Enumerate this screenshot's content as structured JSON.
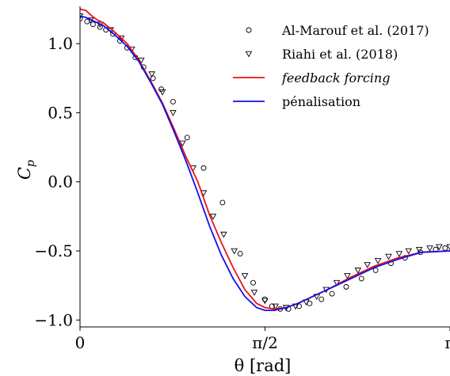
{
  "chart_data": {
    "type": "line",
    "xlabel": "θ [rad]",
    "ylabel": "C_p",
    "xlim": [
      0,
      3.1416
    ],
    "ylim": [
      -1.05,
      1.27
    ],
    "x_ticks": [
      {
        "value": 0,
        "label": "0"
      },
      {
        "value": 1.5708,
        "label": "π/2"
      },
      {
        "value": 3.1416,
        "label": "π"
      }
    ],
    "y_ticks": [
      {
        "value": 1.0,
        "label": "1.0"
      },
      {
        "value": 0.5,
        "label": "0.5"
      },
      {
        "value": 0.0,
        "label": "0.0"
      },
      {
        "value": -0.5,
        "label": "−0.5"
      },
      {
        "value": -1.0,
        "label": "−1.0"
      }
    ],
    "legend_position": "top-right",
    "series": [
      {
        "name": "Al-Marouf et al. (2017)",
        "kind": "marker-circle",
        "color": "#000000",
        "x": [
          0.0,
          0.06,
          0.11,
          0.17,
          0.22,
          0.28,
          0.34,
          0.4,
          0.47,
          0.54,
          0.62,
          0.69,
          0.79,
          0.91,
          1.05,
          1.21,
          1.36,
          1.47,
          1.57,
          1.63,
          1.7,
          1.77,
          1.86,
          1.95,
          2.05,
          2.14,
          2.26,
          2.39,
          2.51,
          2.64,
          2.76,
          2.89,
          3.02,
          3.1
        ],
        "y": [
          1.18,
          1.16,
          1.14,
          1.12,
          1.1,
          1.07,
          1.02,
          0.97,
          0.9,
          0.83,
          0.75,
          0.67,
          0.58,
          0.32,
          0.1,
          -0.15,
          -0.52,
          -0.73,
          -0.85,
          -0.9,
          -0.92,
          -0.92,
          -0.9,
          -0.88,
          -0.85,
          -0.81,
          -0.76,
          -0.7,
          -0.64,
          -0.59,
          -0.55,
          -0.51,
          -0.49,
          -0.48
        ]
      },
      {
        "name": "Riahi et al. (2018)",
        "kind": "marker-triangle-down",
        "color": "#000000",
        "x": [
          0.0,
          0.09,
          0.17,
          0.26,
          0.35,
          0.44,
          0.52,
          0.61,
          0.7,
          0.79,
          0.87,
          0.96,
          1.05,
          1.13,
          1.22,
          1.31,
          1.4,
          1.48,
          1.57,
          1.66,
          1.75,
          1.83,
          1.92,
          2.01,
          2.09,
          2.18,
          2.27,
          2.36,
          2.44,
          2.53,
          2.62,
          2.71,
          2.79,
          2.88,
          2.97,
          3.05,
          3.14
        ],
        "y": [
          1.2,
          1.17,
          1.14,
          1.1,
          1.04,
          0.96,
          0.88,
          0.78,
          0.65,
          0.5,
          0.28,
          0.1,
          -0.08,
          -0.25,
          -0.38,
          -0.5,
          -0.68,
          -0.8,
          -0.86,
          -0.9,
          -0.91,
          -0.9,
          -0.87,
          -0.83,
          -0.78,
          -0.73,
          -0.68,
          -0.64,
          -0.6,
          -0.57,
          -0.54,
          -0.52,
          -0.5,
          -0.49,
          -0.48,
          -0.47,
          -0.47
        ]
      },
      {
        "name": "feedback forcing",
        "kind": "line",
        "color": "#ee1111",
        "italic": true,
        "x": [
          0.0,
          0.05,
          0.1,
          0.15,
          0.2,
          0.3,
          0.4,
          0.5,
          0.6,
          0.7,
          0.8,
          0.9,
          1.0,
          1.1,
          1.2,
          1.3,
          1.4,
          1.5,
          1.57,
          1.65,
          1.75,
          1.85,
          1.95,
          2.1,
          2.3,
          2.5,
          2.7,
          2.9,
          3.1416
        ],
        "y": [
          1.25,
          1.24,
          1.2,
          1.17,
          1.15,
          1.08,
          1.0,
          0.88,
          0.73,
          0.57,
          0.38,
          0.18,
          0.0,
          -0.24,
          -0.44,
          -0.62,
          -0.78,
          -0.88,
          -0.91,
          -0.92,
          -0.91,
          -0.88,
          -0.84,
          -0.78,
          -0.69,
          -0.61,
          -0.55,
          -0.51,
          -0.5
        ]
      },
      {
        "name": "pénalisation",
        "kind": "line",
        "color": "#1111ee",
        "x": [
          0.0,
          0.05,
          0.1,
          0.15,
          0.2,
          0.3,
          0.4,
          0.5,
          0.6,
          0.7,
          0.8,
          0.9,
          1.0,
          1.1,
          1.2,
          1.3,
          1.4,
          1.5,
          1.57,
          1.65,
          1.75,
          1.85,
          1.95,
          2.1,
          2.3,
          2.5,
          2.7,
          2.9,
          3.1416
        ],
        "y": [
          1.2,
          1.19,
          1.17,
          1.15,
          1.13,
          1.06,
          0.98,
          0.87,
          0.72,
          0.56,
          0.36,
          0.15,
          -0.08,
          -0.32,
          -0.53,
          -0.7,
          -0.83,
          -0.91,
          -0.93,
          -0.93,
          -0.91,
          -0.88,
          -0.84,
          -0.78,
          -0.7,
          -0.62,
          -0.56,
          -0.51,
          -0.5
        ]
      }
    ]
  }
}
